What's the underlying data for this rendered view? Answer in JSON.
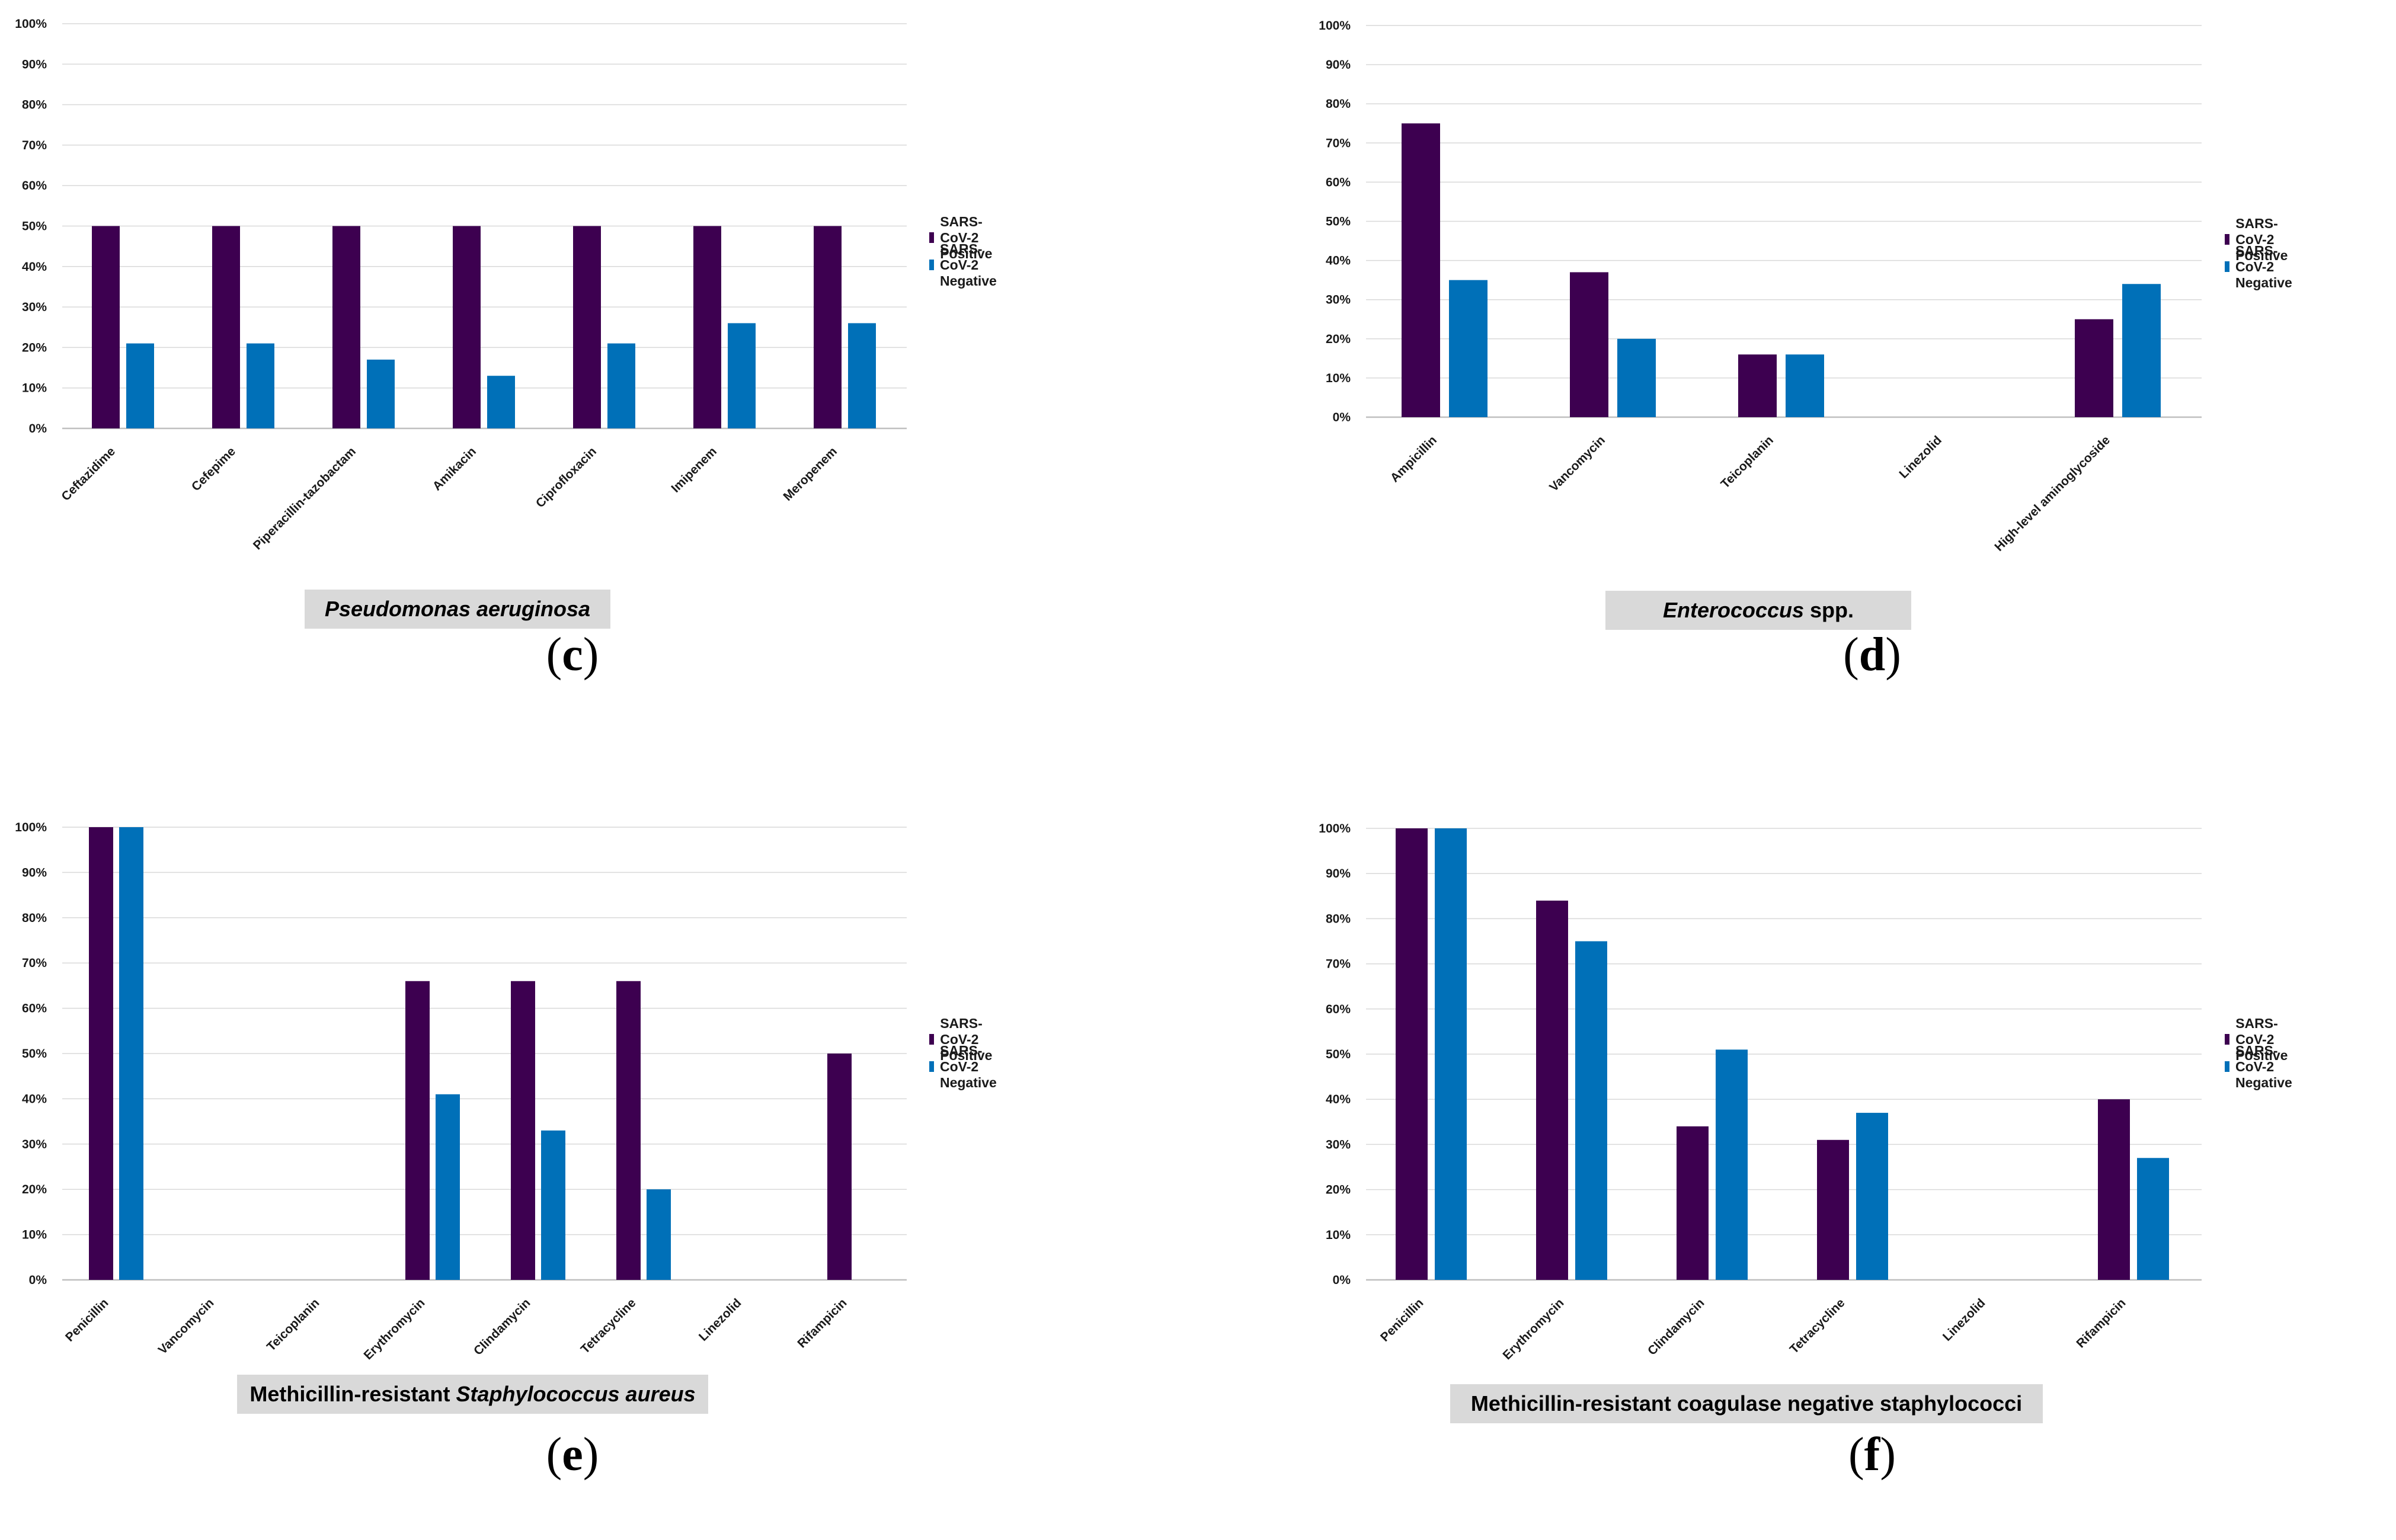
{
  "colors": {
    "positive": "#3d0050",
    "negative": "#0070b8",
    "grid": "#d9d9d9",
    "axis": "#bfbfbf"
  },
  "chart_data": [
    {
      "type": "bar",
      "label": "(c)",
      "letter": "c",
      "caption": [
        {
          "text": "Pseudomonas aeruginosa",
          "italic": true
        }
      ],
      "categories": [
        "Ceftazidime",
        "Cefepime",
        "Piperacillin-tazobactam",
        "Amikacin",
        "Ciprofloxacin",
        "Imipenem",
        "Meropenem"
      ],
      "series": [
        {
          "name": "SARS-CoV-2 Positive",
          "values": [
            50,
            50,
            50,
            50,
            50,
            50,
            50
          ]
        },
        {
          "name": "SARS-CoV-2 Negative",
          "values": [
            21,
            21,
            17,
            13,
            21,
            26,
            26
          ]
        }
      ],
      "ylim": [
        0,
        100
      ],
      "yticks": [
        "0%",
        "10%",
        "20%",
        "30%",
        "40%",
        "50%",
        "60%",
        "70%",
        "80%",
        "90%",
        "100%"
      ],
      "grid": true,
      "legend": "right"
    },
    {
      "type": "bar",
      "label": "(d)",
      "letter": "d",
      "caption": [
        {
          "text": "Enterococcus",
          "italic": true
        },
        {
          "text": " spp.",
          "italic": false
        }
      ],
      "categories": [
        "Ampicillin",
        "Vancomycin",
        "Teicoplanin",
        "Linezolid",
        "High-level aminoglycoside"
      ],
      "series": [
        {
          "name": "SARS-CoV-2 Positive",
          "values": [
            75,
            37,
            16,
            0,
            25
          ]
        },
        {
          "name": "SARS-CoV-2 Negative",
          "values": [
            35,
            20,
            16,
            0,
            34
          ]
        }
      ],
      "ylim": [
        0,
        100
      ],
      "yticks": [
        "0%",
        "10%",
        "20%",
        "30%",
        "40%",
        "50%",
        "60%",
        "70%",
        "80%",
        "90%",
        "100%"
      ],
      "grid": true,
      "legend": "right"
    },
    {
      "type": "bar",
      "label": "(e)",
      "letter": "e",
      "caption": [
        {
          "text": "Methicillin-resistant ",
          "italic": false
        },
        {
          "text": "Staphylococcus aureus",
          "italic": true
        }
      ],
      "categories": [
        "Penicillin",
        "Vancomycin",
        "Teicoplanin",
        "Erythromycin",
        "Clindamycin",
        "Tetracycline",
        "Linezolid",
        "Rifampicin"
      ],
      "series": [
        {
          "name": "SARS-CoV-2 Positive",
          "values": [
            100,
            0,
            0,
            66,
            66,
            66,
            0,
            50
          ]
        },
        {
          "name": "SARS-CoV-2 Negative",
          "values": [
            100,
            0,
            0,
            41,
            33,
            20,
            0,
            0
          ]
        }
      ],
      "ylim": [
        0,
        100
      ],
      "yticks": [
        "0%",
        "10%",
        "20%",
        "30%",
        "40%",
        "50%",
        "60%",
        "70%",
        "80%",
        "90%",
        "100%"
      ],
      "grid": true,
      "legend": "right"
    },
    {
      "type": "bar",
      "label": "(f)",
      "letter": "f",
      "caption": [
        {
          "text": "Methicillin-resistant coagulase negative staphylococci",
          "italic": false
        }
      ],
      "categories": [
        "Penicillin",
        "Erythromycin",
        "Clindamycin",
        "Tetracycline",
        "Linezolid",
        "Rifampicin"
      ],
      "series": [
        {
          "name": "SARS-CoV-2 Positive",
          "values": [
            100,
            84,
            34,
            31,
            0,
            40
          ]
        },
        {
          "name": "SARS-CoV-2 Negative",
          "values": [
            100,
            75,
            51,
            37,
            0,
            27
          ]
        }
      ],
      "ylim": [
        0,
        100
      ],
      "yticks": [
        "0%",
        "10%",
        "20%",
        "30%",
        "40%",
        "50%",
        "60%",
        "70%",
        "80%",
        "90%",
        "100%"
      ],
      "grid": true,
      "legend": "right"
    }
  ]
}
